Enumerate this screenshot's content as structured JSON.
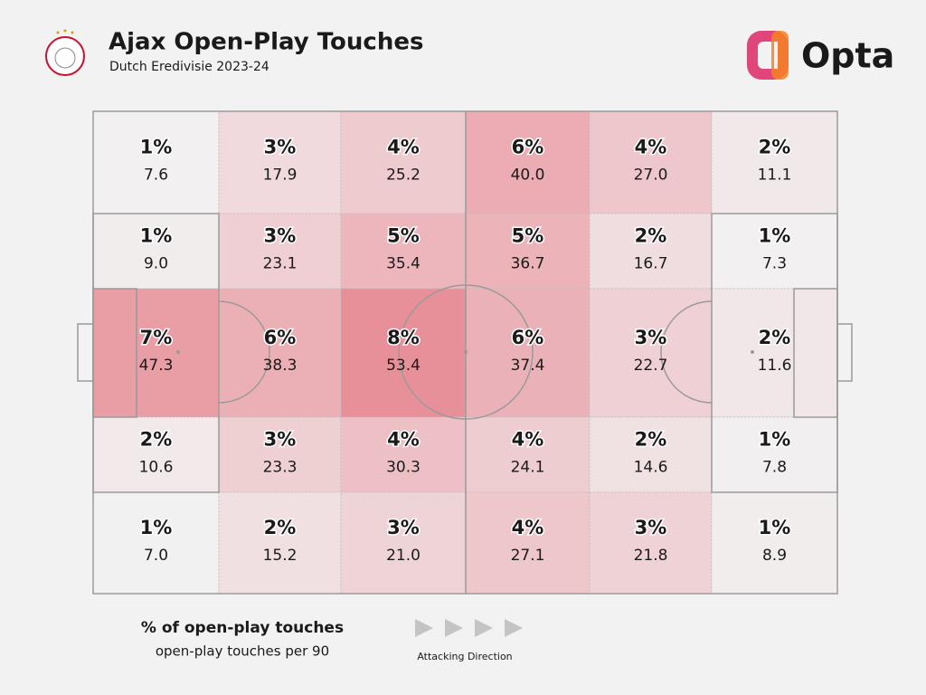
{
  "chart_data": {
    "type": "heatmap",
    "title": "Ajax Open-Play Touches",
    "subtitle": "Dutch Eredivisie 2023-24",
    "brand": "Opta",
    "legend": {
      "primary": "% of open-play touches",
      "secondary": "open-play touches per 90"
    },
    "direction_label": "Attacking Direction",
    "color": {
      "low": "#f2f1f1",
      "high": "#e8909a"
    },
    "shares": [
      [
        1,
        3,
        4,
        6,
        4,
        2
      ],
      [
        1,
        3,
        5,
        5,
        2,
        1
      ],
      [
        7,
        6,
        8,
        6,
        3,
        2
      ],
      [
        2,
        3,
        4,
        4,
        2,
        1
      ],
      [
        1,
        2,
        3,
        4,
        3,
        1
      ]
    ],
    "share_labels": [
      [
        "1%",
        "3%",
        "4%",
        "6%",
        "4%",
        "2%"
      ],
      [
        "1%",
        "3%",
        "5%",
        "5%",
        "2%",
        "1%"
      ],
      [
        "7%",
        "6%",
        "8%",
        "6%",
        "3%",
        "2%"
      ],
      [
        "2%",
        "3%",
        "4%",
        "4%",
        "2%",
        "1%"
      ],
      [
        "1%",
        "2%",
        "3%",
        "4%",
        "3%",
        "1%"
      ]
    ],
    "values": [
      [
        7.6,
        17.9,
        25.2,
        40.0,
        27.0,
        11.1
      ],
      [
        9.0,
        23.1,
        35.4,
        36.7,
        16.7,
        7.3
      ],
      [
        47.3,
        38.3,
        53.4,
        37.4,
        22.7,
        11.6
      ],
      [
        10.6,
        23.3,
        30.3,
        24.1,
        14.6,
        7.8
      ],
      [
        7.0,
        15.2,
        21.0,
        27.1,
        21.8,
        8.9
      ]
    ],
    "value_labels": [
      [
        "7.6",
        "17.9",
        "25.2",
        "40.0",
        "27.0",
        "11.1"
      ],
      [
        "9.0",
        "23.1",
        "35.4",
        "36.7",
        "16.7",
        "7.3"
      ],
      [
        "47.3",
        "38.3",
        "53.4",
        "37.4",
        "22.7",
        "11.6"
      ],
      [
        "10.6",
        "23.3",
        "30.3",
        "24.1",
        "14.6",
        "7.8"
      ],
      [
        "7.0",
        "15.2",
        "21.0",
        "27.1",
        "21.8",
        "8.9"
      ]
    ]
  }
}
